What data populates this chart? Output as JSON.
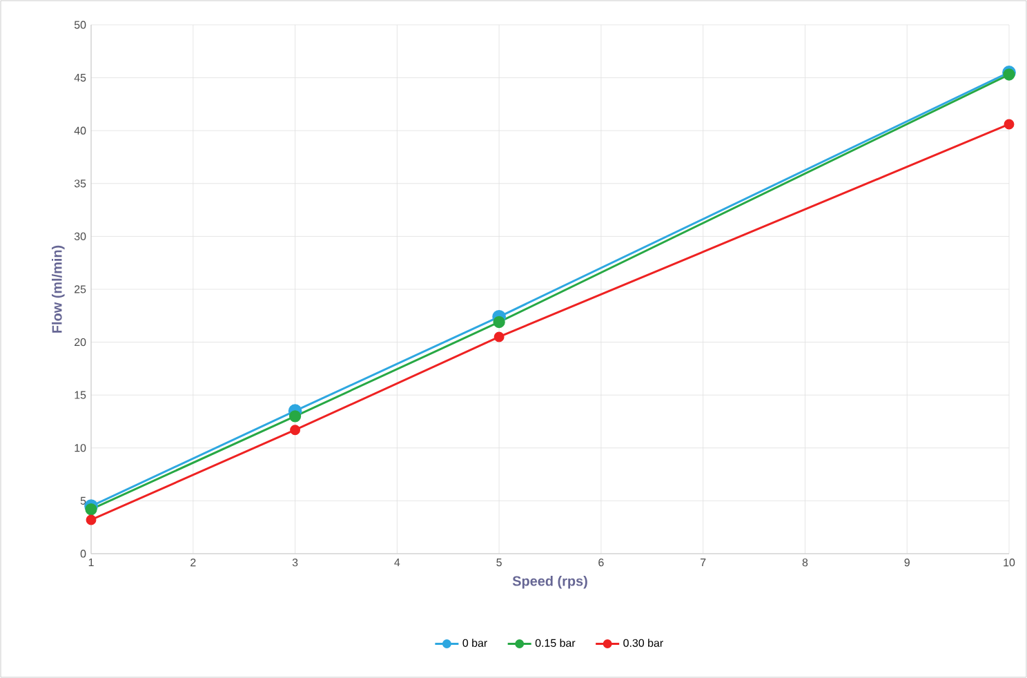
{
  "chart_data": {
    "type": "line",
    "xlabel": "Speed (rps)",
    "ylabel": "Flow (ml/min)",
    "x": [
      1,
      3,
      5,
      10
    ],
    "series": [
      {
        "name": "0 bar",
        "color": "#2ea7e0",
        "values": [
          4.5,
          13.5,
          22.4,
          45.5
        ]
      },
      {
        "name": "0.15 bar",
        "color": "#27a844",
        "values": [
          4.2,
          13.0,
          21.9,
          45.3
        ]
      },
      {
        "name": "0.30 bar",
        "color": "#ee2222",
        "values": [
          3.2,
          11.7,
          20.5,
          40.6
        ]
      }
    ],
    "xlim": [
      1,
      10
    ],
    "xticks": [
      1,
      2,
      3,
      4,
      5,
      6,
      7,
      8,
      9,
      10
    ],
    "ylim": [
      0,
      50
    ],
    "yticks": [
      0,
      5,
      10,
      15,
      20,
      25,
      30,
      35,
      40,
      45,
      50
    ],
    "grid": true,
    "legend": "bottom",
    "marker": "circle",
    "line_style": "solid"
  }
}
